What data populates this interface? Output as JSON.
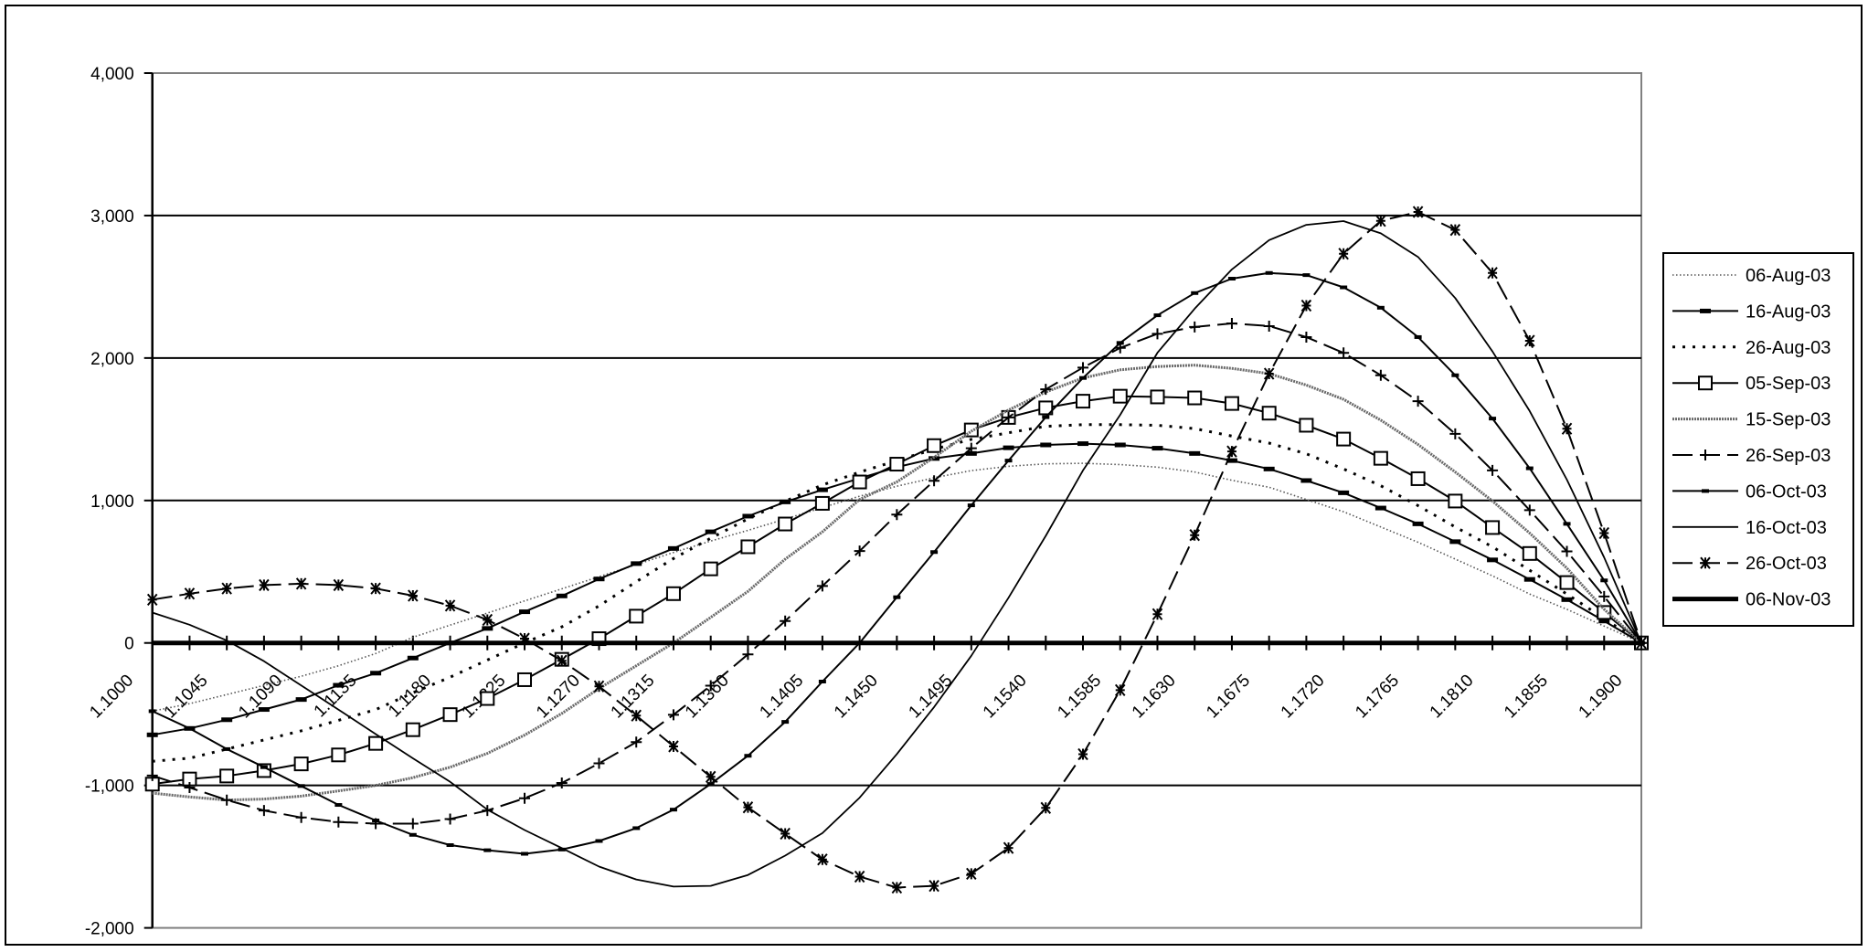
{
  "chart_data": {
    "type": "line",
    "title": "",
    "xlabel": "",
    "ylabel": "",
    "ylim": [
      -2000,
      4000
    ],
    "yticks": [
      4000,
      3000,
      2000,
      1000,
      0,
      -1000,
      -2000
    ],
    "ytick_labels": [
      "4,000",
      "3,000",
      "2,000",
      "1,000",
      "0",
      "-1,000",
      "-2,000"
    ],
    "grid": true,
    "legend_position": "right",
    "x": [
      1.1,
      1.10225,
      1.1045,
      1.10675,
      1.109,
      1.11125,
      1.1135,
      1.11575,
      1.118,
      1.12025,
      1.1225,
      1.12475,
      1.127,
      1.12925,
      1.1315,
      1.13375,
      1.136,
      1.13825,
      1.1405,
      1.14275,
      1.145,
      1.14725,
      1.1495,
      1.15175,
      1.154,
      1.15625,
      1.1585,
      1.16075,
      1.163,
      1.16525,
      1.1675,
      1.16975,
      1.172,
      1.17425,
      1.1765,
      1.17875,
      1.181,
      1.18325,
      1.1855,
      1.18775,
      1.19
    ],
    "x_tick_labels": [
      "1.1000",
      "1.1045",
      "1.1090",
      "1.1135",
      "1.1180",
      "1.1225",
      "1.1270",
      "1.1315",
      "1.1360",
      "1.1405",
      "1.1450",
      "1.1495",
      "1.1540",
      "1.1585",
      "1.1630",
      "1.1675",
      "1.1720",
      "1.1765",
      "1.1810",
      "1.1855",
      "1.1900"
    ],
    "series": [
      {
        "name": "06-Aug-03",
        "style": "dotted-gray",
        "marker": "none",
        "values": [
          -479,
          -426,
          -362,
          -298,
          -234,
          -160,
          -74,
          40,
          125,
          210,
          295,
          380,
          465,
          550,
          635,
          715,
          790,
          870,
          950,
          1030,
          1100,
          1160,
          1210,
          1240,
          1257,
          1261,
          1252,
          1234,
          1200,
          1142,
          1093,
          1007,
          921,
          814,
          707,
          589,
          471,
          343,
          236,
          118,
          0
        ]
      },
      {
        "name": "16-Aug-03",
        "style": "solid",
        "marker": "bar",
        "values": [
          -645,
          -600,
          -539,
          -467,
          -397,
          -297,
          -212,
          -106,
          0,
          102,
          219,
          330,
          449,
          557,
          663,
          780,
          890,
          990,
          1075,
          1155,
          1234,
          1295,
          1330,
          1370,
          1390,
          1399,
          1390,
          1367,
          1330,
          1280,
          1221,
          1140,
          1054,
          947,
          836,
          711,
          583,
          446,
          304,
          154,
          0
        ]
      },
      {
        "name": "26-Aug-03",
        "style": "dashed-short",
        "marker": "none",
        "values": [
          -830,
          -809,
          -745,
          -681,
          -617,
          -543,
          -468,
          -350,
          -240,
          -120,
          0,
          113,
          260,
          430,
          593,
          735,
          871,
          995,
          1109,
          1199,
          1280,
          1360,
          1429,
          1475,
          1521,
          1532,
          1532,
          1528,
          1505,
          1452,
          1403,
          1328,
          1221,
          1103,
          964,
          814,
          675,
          510,
          343,
          171,
          0
        ]
      },
      {
        "name": "05-Sep-03",
        "style": "solid",
        "marker": "square",
        "values": [
          -991,
          -955,
          -934,
          -896,
          -849,
          -786,
          -705,
          -609,
          -503,
          -390,
          -258,
          -115,
          30,
          188,
          346,
          520,
          675,
          835,
          980,
          1130,
          1255,
          1385,
          1495,
          1583,
          1650,
          1697,
          1732,
          1727,
          1720,
          1681,
          1613,
          1528,
          1431,
          1296,
          1153,
          996,
          810,
          628,
          424,
          214,
          0
        ]
      },
      {
        "name": "15-Sep-03",
        "style": "textured-gray",
        "marker": "none",
        "values": [
          -1054,
          -1081,
          -1103,
          -1096,
          -1075,
          -1039,
          -1000,
          -946,
          -872,
          -775,
          -647,
          -495,
          -320,
          -160,
          0,
          180,
          362,
          588,
          780,
          1007,
          1130,
          1303,
          1486,
          1635,
          1761,
          1860,
          1917,
          1940,
          1950,
          1927,
          1890,
          1810,
          1710,
          1564,
          1393,
          1200,
          996,
          771,
          525,
          236,
          0
        ]
      },
      {
        "name": "26-Sep-03",
        "style": "dashed-long",
        "marker": "plus",
        "values": [
          -931,
          -1015,
          -1103,
          -1176,
          -1225,
          -1257,
          -1268,
          -1268,
          -1236,
          -1176,
          -1090,
          -983,
          -845,
          -696,
          -504,
          -300,
          -80,
          154,
          400,
          645,
          901,
          1138,
          1367,
          1583,
          1780,
          1933,
          2071,
          2170,
          2218,
          2243,
          2224,
          2147,
          2036,
          1879,
          1697,
          1468,
          1211,
          932,
          643,
          326,
          0
        ]
      },
      {
        "name": "06-Oct-03",
        "style": "solid",
        "marker": "small-bar",
        "values": [
          -479,
          -600,
          -745,
          -872,
          -1004,
          -1137,
          -1246,
          -1347,
          -1419,
          -1455,
          -1480,
          -1450,
          -1390,
          -1300,
          -1170,
          -990,
          -792,
          -554,
          -271,
          0,
          321,
          638,
          966,
          1280,
          1585,
          1860,
          2106,
          2300,
          2456,
          2557,
          2597,
          2582,
          2496,
          2353,
          2147,
          1879,
          1575,
          1226,
          836,
          439,
          0
        ]
      },
      {
        "name": "16-Oct-03",
        "style": "solid-thin",
        "marker": "none",
        "values": [
          213,
          128,
          17,
          -128,
          -298,
          -468,
          -640,
          -810,
          -975,
          -1170,
          -1313,
          -1440,
          -1570,
          -1660,
          -1710,
          -1705,
          -1629,
          -1493,
          -1335,
          -1086,
          -780,
          -450,
          -90,
          317,
          752,
          1211,
          1601,
          2037,
          2346,
          2622,
          2828,
          2935,
          2961,
          2875,
          2710,
          2421,
          2046,
          1628,
          1146,
          600,
          0
        ]
      },
      {
        "name": "26-Oct-03",
        "style": "dashed-long",
        "marker": "asterisk",
        "values": [
          304,
          346,
          382,
          406,
          416,
          406,
          382,
          332,
          262,
          162,
          30,
          -125,
          -305,
          -510,
          -726,
          -940,
          -1154,
          -1339,
          -1520,
          -1640,
          -1717,
          -1705,
          -1620,
          -1439,
          -1158,
          -781,
          -331,
          202,
          757,
          1344,
          1890,
          2368,
          2732,
          2963,
          3025,
          2899,
          2597,
          2121,
          1504,
          771,
          0
        ]
      },
      {
        "name": "06-Nov-03",
        "style": "solid-thick",
        "marker": "none",
        "values": [
          0,
          0,
          0,
          0,
          0,
          0,
          0,
          0,
          0,
          0,
          0,
          0,
          0,
          0,
          0,
          0,
          0,
          0,
          0,
          0,
          0,
          0,
          0,
          0,
          0,
          0,
          0,
          0,
          0,
          0,
          0,
          0,
          0,
          0,
          0,
          0,
          0,
          0,
          0,
          0,
          0
        ]
      }
    ]
  },
  "colors": {
    "axis": "#000000",
    "gridline": "#000000",
    "plot_border": "#808080",
    "series_gray": "#6a6a6a",
    "background": "#ffffff"
  }
}
